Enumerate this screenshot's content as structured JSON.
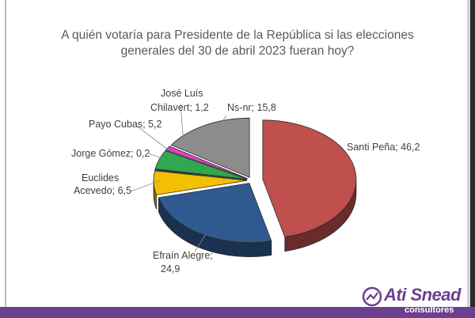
{
  "chart_data": {
    "type": "pie",
    "title_line1": "A quién votaría para Presidente de la República si las elecciones",
    "title_line2": "generales del 30 de abril 2023 fueran hoy?",
    "slices": [
      {
        "label": "Santi Peña",
        "value": 46.2,
        "value_text": "46,2",
        "color": "#c0504d"
      },
      {
        "label": "Efraín Alegre",
        "value": 24.9,
        "value_text": "24,9",
        "color": "#2f5a8f"
      },
      {
        "label": "Euclides Acevedo",
        "value": 6.5,
        "value_text": "6,5",
        "color": "#f2c000"
      },
      {
        "label": "Jorge Gómez",
        "value": 0.2,
        "value_text": "0,2",
        "color": "#7f7f7f"
      },
      {
        "label": "Payo Cubas",
        "value": 5.2,
        "value_text": "5,2",
        "color": "#2fa84f"
      },
      {
        "label": "José Luís Chilavert",
        "value": 1.2,
        "value_text": "1,2",
        "color": "#e040c8"
      },
      {
        "label": "Ns-nr",
        "value": 15.8,
        "value_text": "15,8",
        "color": "#8c8c8c"
      }
    ],
    "labels": {
      "santi": "Santi Peña; 46,2",
      "efrain_1": "Efraín Alegre;",
      "efrain_2": "24,9",
      "euclides_1": "Euclides",
      "euclides_2": "Acevedo; 6,5",
      "jorge": "Jorge Gómez; 0,2",
      "payo": "Payo Cubas; 5,2",
      "jose_1": "José Luís",
      "jose_2": "Chilavert; 1,2",
      "nsnr": "Ns-nr; 15,8"
    }
  },
  "brand": {
    "logo_main": "Ati Snead",
    "logo_sub": "consultores",
    "color": "#6c3f8f"
  }
}
